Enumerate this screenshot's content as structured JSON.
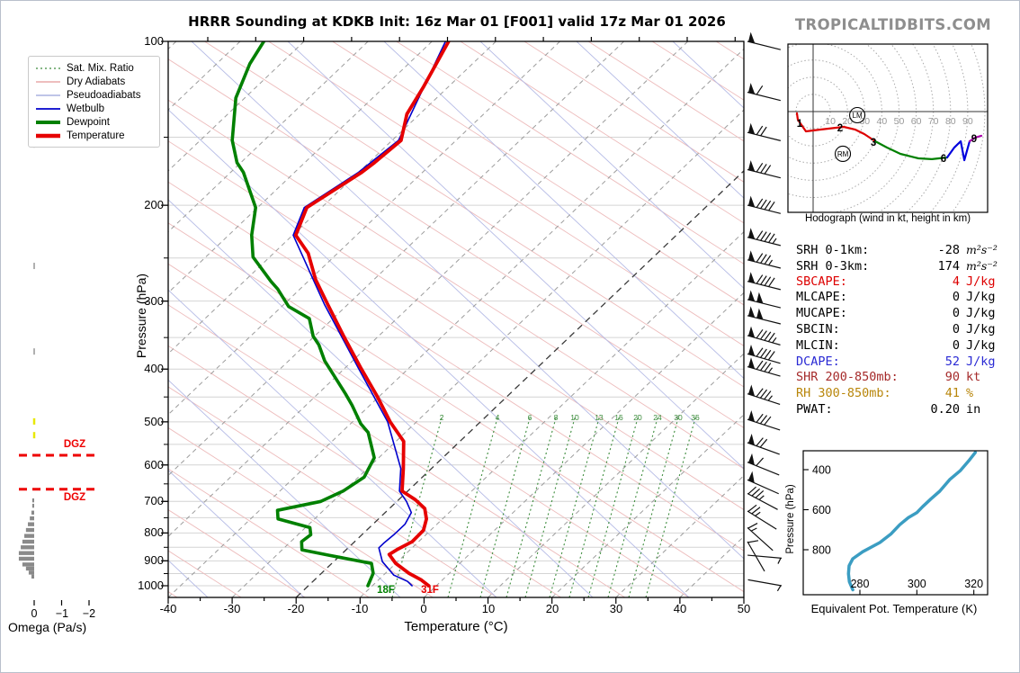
{
  "title": "HRRR Sounding at KDKB Init: 16z Mar 01 [F001] valid 17z Mar 01 2026",
  "watermark": "TROPICALTIDBITS.COM",
  "chart_data": [
    {
      "id": "skewt",
      "type": "line",
      "xlabel": "Temperature (°C)",
      "ylabel": "Pressure (hPa)",
      "x_ticks": [
        -40,
        -30,
        -20,
        -10,
        0,
        10,
        20,
        30,
        40,
        50
      ],
      "y_ticks": [
        100,
        200,
        300,
        400,
        500,
        600,
        700,
        800,
        900,
        1000
      ],
      "xlim": [
        -40,
        50
      ],
      "ylim": [
        1000,
        100
      ],
      "grid_pressures": [
        150,
        200,
        250,
        300,
        350,
        400,
        450,
        500,
        550,
        600,
        650,
        700,
        750,
        800,
        850,
        900,
        950,
        1000
      ],
      "legend": [
        "Sat. Mix. Ratio",
        "Dry Adiabats",
        "Pseudoadiabats",
        "Wetbulb",
        "Dewpoint",
        "Temperature"
      ],
      "legend_position": "upper left",
      "mixing_ratio_labels": [
        [
          "2",
          490
        ],
        [
          "4",
          552
        ],
        [
          "6",
          588
        ],
        [
          "8",
          617
        ],
        [
          "10",
          638
        ],
        [
          "13",
          665
        ],
        [
          "16",
          687
        ],
        [
          "20",
          708
        ],
        [
          "24",
          730
        ],
        [
          "30",
          753
        ],
        [
          "36",
          772
        ]
      ],
      "surface_temp_label": "31F",
      "surface_dewpoint_label": "18F",
      "series": [
        {
          "name": "Temperature",
          "color": "#e60000",
          "width": 3.8,
          "points_p_t": [
            [
              100,
              -87.4
            ],
            [
              121,
              -83.9
            ],
            [
              136,
              -82.0
            ],
            [
              152,
              -78.6
            ],
            [
              167,
              -79.1
            ],
            [
              174,
              -79.5
            ],
            [
              202,
              -82.3
            ],
            [
              227,
              -79.5
            ],
            [
              245,
              -74.6
            ],
            [
              274,
              -69.1
            ],
            [
              304,
              -63.2
            ],
            [
              350,
              -55.1
            ],
            [
              399,
              -47.4
            ],
            [
              449,
              -40.3
            ],
            [
              500,
              -34.1
            ],
            [
              543,
              -28.8
            ],
            [
              609,
              -24.4
            ],
            [
              670,
              -20.9
            ],
            [
              695,
              -17.4
            ],
            [
              721,
              -14.5
            ],
            [
              754,
              -12.5
            ],
            [
              791,
              -11.1
            ],
            [
              830,
              -11.0
            ],
            [
              859,
              -12.1
            ],
            [
              876,
              -12.5
            ],
            [
              910,
              -10.0
            ],
            [
              949,
              -6.3
            ],
            [
              975,
              -3.4
            ],
            [
              1000,
              -1.2
            ]
          ]
        },
        {
          "name": "Dewpoint",
          "color": "#008000",
          "width": 3.6,
          "points_p_t": [
            [
              100,
              -116.3
            ],
            [
              110,
              -114.8
            ],
            [
              127,
              -111.4
            ],
            [
              152,
              -105.0
            ],
            [
              167,
              -100.6
            ],
            [
              174,
              -98.0
            ],
            [
              202,
              -90.3
            ],
            [
              227,
              -86.4
            ],
            [
              249,
              -82.6
            ],
            [
              276,
              -75.8
            ],
            [
              285,
              -73.5
            ],
            [
              307,
              -68.9
            ],
            [
              323,
              -63.7
            ],
            [
              348,
              -60.2
            ],
            [
              361,
              -57.9
            ],
            [
              386,
              -54.4
            ],
            [
              417,
              -49.6
            ],
            [
              444,
              -45.7
            ],
            [
              466,
              -42.8
            ],
            [
              504,
              -38.4
            ],
            [
              523,
              -35.8
            ],
            [
              582,
              -30.7
            ],
            [
              632,
              -29.1
            ],
            [
              670,
              -30.1
            ],
            [
              700,
              -31.9
            ],
            [
              727,
              -37.2
            ],
            [
              754,
              -35.7
            ],
            [
              782,
              -29.3
            ],
            [
              806,
              -28.0
            ],
            [
              830,
              -28.3
            ],
            [
              859,
              -26.9
            ],
            [
              879,
              -21.8
            ],
            [
              910,
              -13.8
            ],
            [
              949,
              -11.9
            ],
            [
              1000,
              -10.7
            ]
          ]
        },
        {
          "name": "Wetbulb",
          "color": "#0000cc",
          "width": 1.6,
          "points_p_t": [
            [
              100,
              -87.9
            ],
            [
              152,
              -79.0
            ],
            [
              174,
              -80.0
            ],
            [
              202,
              -82.7
            ],
            [
              227,
              -79.9
            ],
            [
              304,
              -63.7
            ],
            [
              399,
              -47.8
            ],
            [
              500,
              -34.5
            ],
            [
              609,
              -24.8
            ],
            [
              670,
              -21.3
            ],
            [
              700,
              -18.5
            ],
            [
              734,
              -15.9
            ],
            [
              771,
              -15.0
            ],
            [
              806,
              -15.0
            ],
            [
              836,
              -15.2
            ],
            [
              852,
              -15.2
            ],
            [
              903,
              -12.4
            ],
            [
              956,
              -8.4
            ],
            [
              982,
              -5.2
            ],
            [
              1000,
              -3.8
            ]
          ]
        }
      ]
    },
    {
      "id": "hodograph",
      "type": "line",
      "caption": "Hodograph (wind in kt, height in km)",
      "ring_interval_kt": 10,
      "ring_labels": [
        "10",
        "20",
        "30",
        "40",
        "50",
        "60",
        "70",
        "80",
        "90"
      ],
      "segments": [
        {
          "name": "0-3km",
          "color": "#dd0000",
          "points_uv_kt": [
            [
              -9.4,
              -1.0
            ],
            [
              -8.9,
              -4.7
            ],
            [
              -4.2,
              -11.5
            ],
            [
              3.7,
              -10.5
            ],
            [
              17.8,
              -8.9
            ],
            [
              24.6,
              -10.5
            ],
            [
              29.8,
              -13.1
            ],
            [
              36.1,
              -17.3
            ]
          ]
        },
        {
          "name": "3-6km",
          "color": "#008000",
          "points_uv_kt": [
            [
              36.1,
              -17.3
            ],
            [
              42.9,
              -20.9
            ],
            [
              50.8,
              -24.6
            ],
            [
              61.3,
              -27.2
            ],
            [
              69.1,
              -27.7
            ],
            [
              78.0,
              -26.7
            ]
          ]
        },
        {
          "name": "6-9km",
          "color": "#0000dd",
          "points_uv_kt": [
            [
              78.0,
              -26.7
            ],
            [
              82.2,
              -20.9
            ],
            [
              85.9,
              -17.3
            ],
            [
              88.0,
              -28.3
            ],
            [
              91.1,
              -17.3
            ]
          ]
        },
        {
          "name": "9km+",
          "color": "#aa00aa",
          "points_uv_kt": [
            [
              91.1,
              -17.3
            ],
            [
              94.2,
              -15.2
            ],
            [
              97.9,
              -14.1
            ]
          ]
        }
      ],
      "height_labels": [
        {
          "label": "1",
          "u": -7.9,
          "v": -6.8
        },
        {
          "label": "2",
          "u": 15.7,
          "v": -9.4
        },
        {
          "label": "3",
          "u": 35.1,
          "v": -17.8
        },
        {
          "label": "6",
          "u": 75.9,
          "v": -27.2
        },
        {
          "label": "9",
          "u": 93.7,
          "v": -15.7
        }
      ],
      "markers": [
        {
          "label": "LM",
          "u": 25.7,
          "v": -2.1
        },
        {
          "label": "RM",
          "u": 17.3,
          "v": -24.6
        }
      ]
    },
    {
      "id": "theta_e",
      "type": "line",
      "xlabel": "Equivalent Pot. Temperature (K)",
      "ylabel": "Pressure (hPa)",
      "x_ticks": [
        280,
        300,
        320
      ],
      "y_ticks": [
        400,
        600,
        800
      ],
      "xlim": [
        272,
        325
      ],
      "ylim": [
        1050,
        300
      ],
      "color": "#3b9dc2",
      "points_thetae_p": [
        [
          277.5,
          1000
        ],
        [
          276.3,
          960
        ],
        [
          276.0,
          920
        ],
        [
          276.2,
          880
        ],
        [
          277.5,
          845
        ],
        [
          281,
          810
        ],
        [
          287,
          764
        ],
        [
          291,
          720
        ],
        [
          294,
          675
        ],
        [
          297,
          640
        ],
        [
          300,
          615
        ],
        [
          302,
          585
        ],
        [
          305,
          545
        ],
        [
          308,
          508
        ],
        [
          311.5,
          450
        ],
        [
          315.3,
          404
        ],
        [
          318.5,
          351
        ],
        [
          320.5,
          314
        ]
      ]
    },
    {
      "id": "omega",
      "type": "bar",
      "xlabel": "Omega (Pa/s)",
      "x_ticks": [
        0,
        -1,
        -2
      ],
      "dgz_label": "DGZ",
      "dgz_pressures": [
        576,
        665
      ],
      "bars_p_omega": [
        [
          697,
          0.07
        ],
        [
          713,
          0.07
        ],
        [
          734,
          0.1
        ],
        [
          752,
          0.16
        ],
        [
          771,
          0.23
        ],
        [
          790,
          0.3
        ],
        [
          810,
          0.36
        ],
        [
          830,
          0.43
        ],
        [
          850,
          0.49
        ],
        [
          871,
          0.56
        ],
        [
          892,
          0.56
        ],
        [
          914,
          0.43
        ],
        [
          930,
          0.3
        ],
        [
          946,
          0.2
        ],
        [
          962,
          0.1
        ]
      ],
      "yellow_tick_pressures": [
        500,
        530
      ],
      "gray_tick_pressures": [
        111,
        155,
        259,
        372
      ]
    }
  ],
  "stats": {
    "rows": [
      {
        "label": "SRH 0-1km:",
        "value": "-28",
        "unit": "m²s⁻²",
        "color": "#000000",
        "math": true
      },
      {
        "label": "SRH 0-3km:",
        "value": "174",
        "unit": "m²s⁻²",
        "color": "#000000",
        "math": true
      },
      {
        "label": "SBCAPE:",
        "value": "4",
        "unit": "J/kg",
        "color": "#dd0000"
      },
      {
        "label": "MLCAPE:",
        "value": "0",
        "unit": "J/kg",
        "color": "#000000"
      },
      {
        "label": "MUCAPE:",
        "value": "0",
        "unit": "J/kg",
        "color": "#000000"
      },
      {
        "label": "SBCIN:",
        "value": "0",
        "unit": "J/kg",
        "color": "#000000"
      },
      {
        "label": "MLCIN:",
        "value": "0",
        "unit": "J/kg",
        "color": "#000000"
      },
      {
        "label": "DCAPE:",
        "value": "52",
        "unit": "J/kg",
        "color": "#2a2ad4"
      },
      {
        "label": "SHR 200-850mb:",
        "value": "90",
        "unit": "kt",
        "color": "#a52a2a"
      },
      {
        "label": "RH 300-850mb:",
        "value": "41",
        "unit": "%",
        "color": "#b8860b"
      },
      {
        "label": "PWAT:",
        "value": "0.20",
        "unit": "in",
        "color": "#000000"
      }
    ]
  },
  "wind_barbs": [
    {
      "p": 100,
      "speed_kt": 50,
      "flags": 1,
      "fulls": 0,
      "halves": 0,
      "rot": 14
    },
    {
      "p": 124,
      "speed_kt": 60,
      "flags": 1,
      "fulls": 1,
      "halves": 0,
      "rot": 14
    },
    {
      "p": 147,
      "speed_kt": 70,
      "flags": 1,
      "fulls": 2,
      "halves": 0,
      "rot": 14
    },
    {
      "p": 172,
      "speed_kt": 80,
      "flags": 1,
      "fulls": 3,
      "halves": 0,
      "rot": 14
    },
    {
      "p": 200,
      "speed_kt": 90,
      "flags": 1,
      "fulls": 4,
      "halves": 0,
      "rot": 14
    },
    {
      "p": 229,
      "speed_kt": 95,
      "flags": 1,
      "fulls": 4,
      "halves": 1,
      "rot": 14
    },
    {
      "p": 252,
      "speed_kt": 85,
      "flags": 1,
      "fulls": 3,
      "halves": 1,
      "rot": 14
    },
    {
      "p": 276,
      "speed_kt": 90,
      "flags": 1,
      "fulls": 4,
      "halves": 0,
      "rot": 14
    },
    {
      "p": 298,
      "speed_kt": 100,
      "flags": 2,
      "fulls": 0,
      "halves": 0,
      "rot": 14
    },
    {
      "p": 319,
      "speed_kt": 100,
      "flags": 2,
      "fulls": 0,
      "halves": 0,
      "rot": 14
    },
    {
      "p": 347,
      "speed_kt": 95,
      "flags": 1,
      "fulls": 4,
      "halves": 1,
      "rot": 16
    },
    {
      "p": 375,
      "speed_kt": 90,
      "flags": 1,
      "fulls": 4,
      "halves": 0,
      "rot": 16
    },
    {
      "p": 396,
      "speed_kt": 85,
      "flags": 1,
      "fulls": 3,
      "halves": 1,
      "rot": 16
    },
    {
      "p": 444,
      "speed_kt": 85,
      "flags": 1,
      "fulls": 3,
      "halves": 1,
      "rot": 18
    },
    {
      "p": 495,
      "speed_kt": 80,
      "flags": 1,
      "fulls": 3,
      "halves": 0,
      "rot": 18
    },
    {
      "p": 546,
      "speed_kt": 70,
      "flags": 1,
      "fulls": 2,
      "halves": 0,
      "rot": 20
    },
    {
      "p": 593,
      "speed_kt": 60,
      "flags": 1,
      "fulls": 1,
      "halves": 0,
      "rot": 22
    },
    {
      "p": 639,
      "speed_kt": 50,
      "flags": 1,
      "fulls": 0,
      "halves": 0,
      "rot": 24
    },
    {
      "p": 677,
      "speed_kt": 35,
      "flags": 0,
      "fulls": 3,
      "halves": 1,
      "rot": 28
    },
    {
      "p": 729,
      "speed_kt": 25,
      "flags": 0,
      "fulls": 2,
      "halves": 1,
      "rot": 32
    },
    {
      "p": 782,
      "speed_kt": 15,
      "flags": 0,
      "fulls": 1,
      "halves": 1,
      "rot": 42
    },
    {
      "p": 830,
      "speed_kt": 10,
      "flags": 0,
      "fulls": 1,
      "halves": 0,
      "rot": 60
    },
    {
      "p": 890,
      "speed_kt": 5,
      "flags": 0,
      "fulls": 0,
      "halves": 1,
      "rot": 185
    },
    {
      "p": 1000,
      "speed_kt": 5,
      "flags": 0,
      "fulls": 0,
      "halves": 1,
      "rot": 190
    }
  ]
}
